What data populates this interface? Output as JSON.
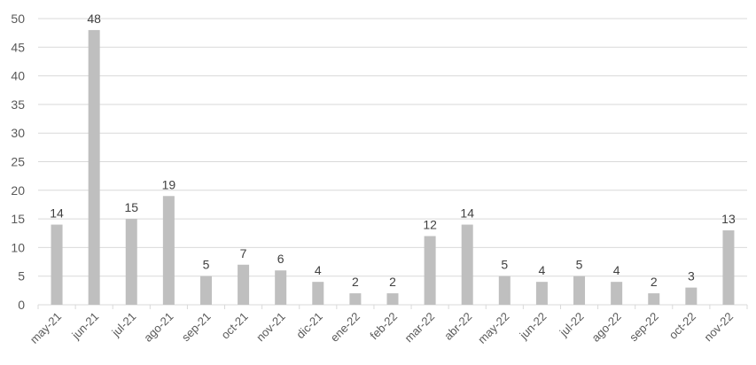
{
  "chart_data": {
    "type": "bar",
    "title": "",
    "xlabel": "",
    "ylabel": "",
    "categories": [
      "may-21",
      "jun-21",
      "jul-21",
      "ago-21",
      "sep-21",
      "oct-21",
      "nov-21",
      "dic-21",
      "ene-22",
      "feb-22",
      "mar-22",
      "abr-22",
      "may-22",
      "jun-22",
      "jul-22",
      "ago-22",
      "sep-22",
      "oct-22",
      "nov-22"
    ],
    "values": [
      14,
      48,
      15,
      19,
      5,
      7,
      6,
      4,
      2,
      2,
      12,
      14,
      5,
      4,
      5,
      4,
      2,
      3,
      13
    ],
    "ylim": [
      0,
      50
    ],
    "yticks": [
      0,
      5,
      10,
      15,
      20,
      25,
      30,
      35,
      40,
      45,
      50
    ],
    "grid": true,
    "data_labels": true,
    "legend": "none",
    "bar_color": "#bfbfbf",
    "grid_color": "#d9d9d9",
    "text_color": "#595959"
  }
}
